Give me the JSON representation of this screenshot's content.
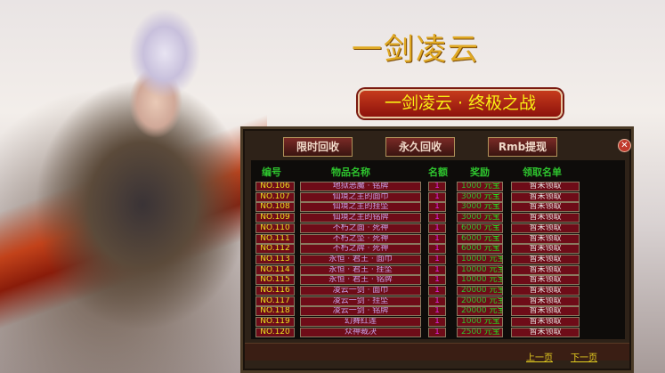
{
  "logo": "一剑凌云",
  "banner": "一剑凌云 · 终极之战",
  "tabs": [
    "限时回收",
    "永久回收",
    "Rmb提现"
  ],
  "close_icon": "close-icon",
  "headers": [
    "编号",
    "物品名称",
    "名额",
    "奖励",
    "领取名单"
  ],
  "rows": [
    {
      "no": "NO.106",
      "name": "地狱恶魔 · 铭牌",
      "count": "1",
      "reward": "1000",
      "unit": "元宝",
      "status": "暂未领取"
    },
    {
      "no": "NO.107",
      "name": "仙境之主的面巾",
      "count": "1",
      "reward": "3000",
      "unit": "元宝",
      "status": "暂未领取"
    },
    {
      "no": "NO.108",
      "name": "仙境之主的挂坠",
      "count": "1",
      "reward": "3000",
      "unit": "元宝",
      "status": "暂未领取"
    },
    {
      "no": "NO.109",
      "name": "仙境之主的铭牌",
      "count": "1",
      "reward": "3000",
      "unit": "元宝",
      "status": "暂未领取"
    },
    {
      "no": "NO.110",
      "name": "不朽之面 · 死神",
      "count": "1",
      "reward": "6000",
      "unit": "元宝",
      "status": "暂未领取"
    },
    {
      "no": "NO.111",
      "name": "不朽之坠 · 死神",
      "count": "1",
      "reward": "6000",
      "unit": "元宝",
      "status": "暂未领取"
    },
    {
      "no": "NO.112",
      "name": "不朽之牌 · 死神",
      "count": "1",
      "reward": "6000",
      "unit": "元宝",
      "status": "暂未领取"
    },
    {
      "no": "NO.113",
      "name": "永恒 · 君王 · 面巾",
      "count": "1",
      "reward": "10000",
      "unit": "元宝",
      "status": "暂未领取"
    },
    {
      "no": "NO.114",
      "name": "永恒 · 君王 · 挂坠",
      "count": "1",
      "reward": "10000",
      "unit": "元宝",
      "status": "暂未领取"
    },
    {
      "no": "NO.115",
      "name": "永恒 · 君王 · 铭牌",
      "count": "1",
      "reward": "10000",
      "unit": "元宝",
      "status": "暂未领取"
    },
    {
      "no": "NO.116",
      "name": "凌云一剑 · 面巾",
      "count": "1",
      "reward": "20000",
      "unit": "元宝",
      "status": "暂未领取"
    },
    {
      "no": "NO.117",
      "name": "凌云一剑 · 挂坠",
      "count": "1",
      "reward": "20000",
      "unit": "元宝",
      "status": "暂未领取"
    },
    {
      "no": "NO.118",
      "name": "凌云一剑 · 铭牌",
      "count": "1",
      "reward": "20000",
      "unit": "元宝",
      "status": "暂未领取"
    },
    {
      "no": "NO.119",
      "name": "幻舞红莲",
      "count": "1",
      "reward": "1000",
      "unit": "元宝",
      "status": "暂未领取"
    },
    {
      "no": "NO.120",
      "name": "众神裁决",
      "count": "1",
      "reward": "2500",
      "unit": "元宝",
      "status": "暂未领取"
    }
  ],
  "prev_page": "上一页",
  "next_page": "下一页"
}
